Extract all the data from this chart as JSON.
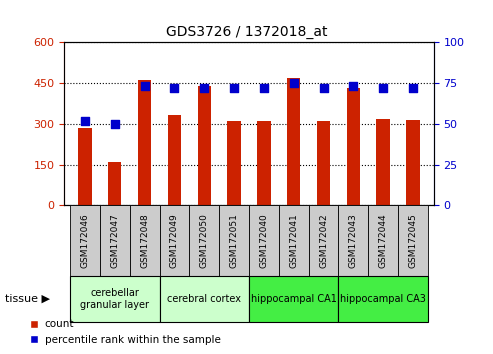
{
  "title": "GDS3726 / 1372018_at",
  "samples": [
    "GSM172046",
    "GSM172047",
    "GSM172048",
    "GSM172049",
    "GSM172050",
    "GSM172051",
    "GSM172040",
    "GSM172041",
    "GSM172042",
    "GSM172043",
    "GSM172044",
    "GSM172045"
  ],
  "counts": [
    285,
    158,
    460,
    333,
    438,
    312,
    312,
    470,
    312,
    434,
    318,
    315
  ],
  "percentiles": [
    52,
    50,
    73,
    72,
    72,
    72,
    72,
    75,
    72,
    73,
    72,
    72
  ],
  "bar_color": "#cc2200",
  "dot_color": "#0000cc",
  "left_ylim": [
    0,
    600
  ],
  "left_yticks": [
    0,
    150,
    300,
    450,
    600
  ],
  "right_ylim": [
    0,
    100
  ],
  "right_yticks": [
    0,
    25,
    50,
    75,
    100
  ],
  "tissue_groups": [
    {
      "label": "cerebellar\ngranular layer",
      "start": 0,
      "end": 3,
      "color": "#ccffcc"
    },
    {
      "label": "cerebral cortex",
      "start": 3,
      "end": 6,
      "color": "#ccffcc"
    },
    {
      "label": "hippocampal CA1",
      "start": 6,
      "end": 9,
      "color": "#44ee44"
    },
    {
      "label": "hippocampal CA3",
      "start": 9,
      "end": 12,
      "color": "#44ee44"
    }
  ],
  "tissue_label": "tissue",
  "legend_count": "count",
  "legend_percentile": "percentile rank within the sample",
  "tick_color_left": "#cc2200",
  "tick_color_right": "#0000cc",
  "bar_width": 0.45,
  "dot_size": 40,
  "sample_cell_color": "#cccccc",
  "sample_cell_edge": "#888888"
}
